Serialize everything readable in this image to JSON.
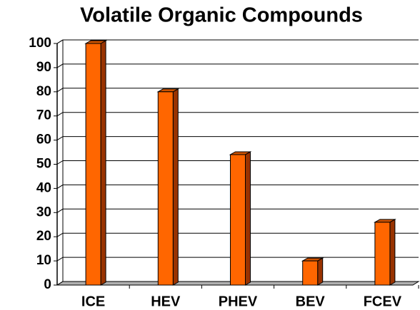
{
  "chart_data": {
    "type": "bar",
    "title": "Volatile Organic Compounds",
    "categories": [
      "ICE",
      "HEV",
      "PHEV",
      "BEV",
      "FCEV"
    ],
    "values": [
      100,
      80,
      54,
      10,
      26
    ],
    "color": "#ff6600",
    "ylim": [
      0,
      100
    ],
    "yticks": [
      0,
      10,
      20,
      30,
      40,
      50,
      60,
      70,
      80,
      90,
      100
    ],
    "grid": true
  }
}
